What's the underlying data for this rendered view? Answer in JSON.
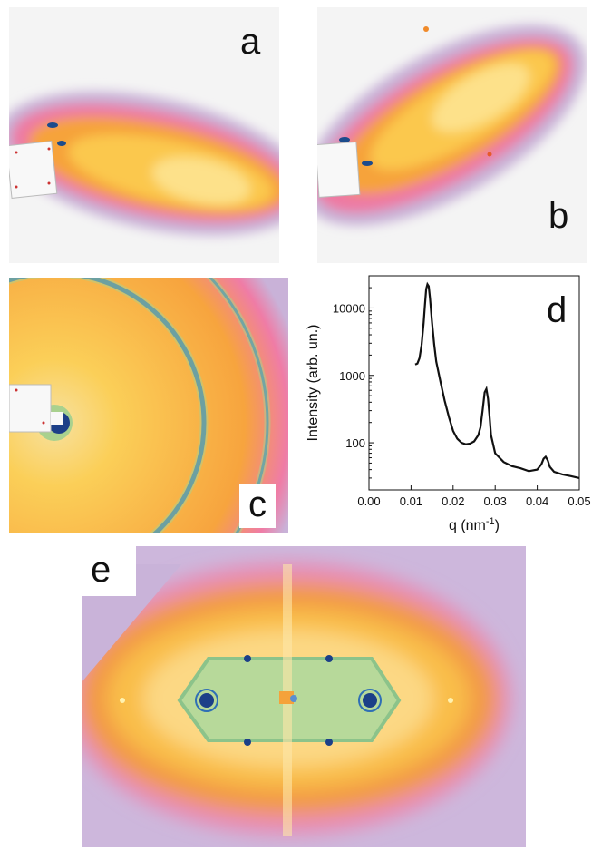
{
  "figure": {
    "panels": [
      {
        "id": "a",
        "label": "a"
      },
      {
        "id": "b",
        "label": "b"
      },
      {
        "id": "c",
        "label": "c"
      },
      {
        "id": "d",
        "label": "d"
      },
      {
        "id": "e",
        "label": "e"
      }
    ]
  },
  "colors": {
    "background": "#f3f3f3",
    "purple_halo": "#b79ac9",
    "pink": "#ec6f9a",
    "orange": "#f5a230",
    "yellow": "#fbcf52",
    "green": "#a9d18e",
    "blue": "#2f6fb5",
    "navy": "#0d1f55",
    "line": "#111111"
  },
  "chart_data": {
    "type": "line",
    "xlabel": "q (nm",
    "xlabel_sup": "-1",
    "xlabel_close": ")",
    "ylabel": "Intensity (arb. un.)",
    "xlim": [
      0.0,
      0.05
    ],
    "ylim": [
      20,
      30000
    ],
    "yscale": "log",
    "x_ticks": [
      "0.00",
      "0.01",
      "0.02",
      "0.03",
      "0.04",
      "0.05"
    ],
    "y_ticks": [
      "100",
      "1000",
      "10000"
    ],
    "series": [
      {
        "x": [
          0.011,
          0.0115,
          0.012,
          0.0125,
          0.013,
          0.0133,
          0.0136,
          0.0139,
          0.0142,
          0.0145,
          0.015,
          0.0155,
          0.016,
          0.017,
          0.018,
          0.019,
          0.02,
          0.021,
          0.022,
          0.023,
          0.024,
          0.025,
          0.026,
          0.0265,
          0.027,
          0.0275,
          0.0279,
          0.0283,
          0.0287,
          0.029,
          0.03,
          0.032,
          0.034,
          0.036,
          0.038,
          0.04,
          0.041,
          0.0415,
          0.042,
          0.0425,
          0.043,
          0.044,
          0.046,
          0.048,
          0.05
        ],
        "y": [
          1450,
          1500,
          1800,
          2800,
          6000,
          11000,
          19000,
          22500,
          21000,
          14000,
          6000,
          2900,
          1600,
          800,
          420,
          240,
          150,
          115,
          100,
          95,
          97,
          105,
          130,
          170,
          300,
          560,
          630,
          450,
          230,
          130,
          70,
          52,
          45,
          42,
          38,
          40,
          48,
          58,
          62,
          55,
          44,
          37,
          34,
          32,
          30
        ]
      }
    ]
  }
}
